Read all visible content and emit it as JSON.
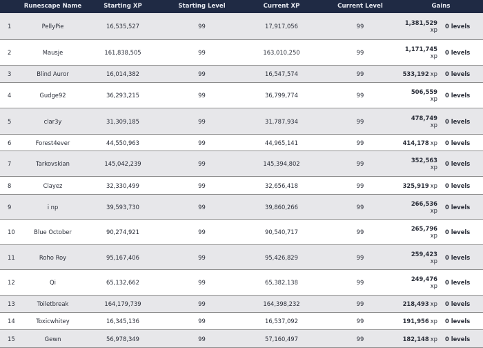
{
  "table": {
    "headers": {
      "name": "Runescape Name",
      "starting_xp": "Starting XP",
      "starting_level": "Starting Level",
      "current_xp": "Current XP",
      "current_level": "Current Level",
      "gains": "Gains"
    },
    "rows": [
      {
        "rank": "1",
        "name": "PellyPie",
        "starting_xp": "16,535,527",
        "starting_level": "99",
        "current_xp": "17,917,056",
        "current_level": "99",
        "gains_xp": "1,381,529",
        "xp_unit": "xp",
        "gains_levels": "0 levels"
      },
      {
        "rank": "2",
        "name": "Mausje",
        "starting_xp": "161,838,505",
        "starting_level": "99",
        "current_xp": "163,010,250",
        "current_level": "99",
        "gains_xp": "1,171,745",
        "xp_unit": "xp",
        "gains_levels": "0 levels"
      },
      {
        "rank": "3",
        "name": "Blind Auror",
        "starting_xp": "16,014,382",
        "starting_level": "99",
        "current_xp": "16,547,574",
        "current_level": "99",
        "gains_xp": "533,192",
        "xp_unit": "xp",
        "gains_levels": "0 levels"
      },
      {
        "rank": "4",
        "name": "Gudge92",
        "starting_xp": "36,293,215",
        "starting_level": "99",
        "current_xp": "36,799,774",
        "current_level": "99",
        "gains_xp": "506,559",
        "xp_unit": "xp",
        "gains_levels": "0 levels"
      },
      {
        "rank": "5",
        "name": "clar3y",
        "starting_xp": "31,309,185",
        "starting_level": "99",
        "current_xp": "31,787,934",
        "current_level": "99",
        "gains_xp": "478,749",
        "xp_unit": "xp",
        "gains_levels": "0 levels"
      },
      {
        "rank": "6",
        "name": "Forest4ever",
        "starting_xp": "44,550,963",
        "starting_level": "99",
        "current_xp": "44,965,141",
        "current_level": "99",
        "gains_xp": "414,178",
        "xp_unit": "xp",
        "gains_levels": "0 levels"
      },
      {
        "rank": "7",
        "name": "Tarkovskian",
        "starting_xp": "145,042,239",
        "starting_level": "99",
        "current_xp": "145,394,802",
        "current_level": "99",
        "gains_xp": "352,563",
        "xp_unit": "xp",
        "gains_levels": "0 levels"
      },
      {
        "rank": "8",
        "name": "Clayez",
        "starting_xp": "32,330,499",
        "starting_level": "99",
        "current_xp": "32,656,418",
        "current_level": "99",
        "gains_xp": "325,919",
        "xp_unit": "xp",
        "gains_levels": "0 levels"
      },
      {
        "rank": "9",
        "name": "i np",
        "starting_xp": "39,593,730",
        "starting_level": "99",
        "current_xp": "39,860,266",
        "current_level": "99",
        "gains_xp": "266,536",
        "xp_unit": "xp",
        "gains_levels": "0 levels"
      },
      {
        "rank": "10",
        "name": "Blue October",
        "starting_xp": "90,274,921",
        "starting_level": "99",
        "current_xp": "90,540,717",
        "current_level": "99",
        "gains_xp": "265,796",
        "xp_unit": "xp",
        "gains_levels": "0 levels"
      },
      {
        "rank": "11",
        "name": "Roho Roy",
        "starting_xp": "95,167,406",
        "starting_level": "99",
        "current_xp": "95,426,829",
        "current_level": "99",
        "gains_xp": "259,423",
        "xp_unit": "xp",
        "gains_levels": "0 levels"
      },
      {
        "rank": "12",
        "name": "Qi",
        "starting_xp": "65,132,662",
        "starting_level": "99",
        "current_xp": "65,382,138",
        "current_level": "99",
        "gains_xp": "249,476",
        "xp_unit": "xp",
        "gains_levels": "0 levels"
      },
      {
        "rank": "13",
        "name": "Toiletbreak",
        "starting_xp": "164,179,739",
        "starting_level": "99",
        "current_xp": "164,398,232",
        "current_level": "99",
        "gains_xp": "218,493",
        "xp_unit": "xp",
        "gains_levels": "0 levels"
      },
      {
        "rank": "14",
        "name": "Toxicwhitey",
        "starting_xp": "16,345,136",
        "starting_level": "99",
        "current_xp": "16,537,092",
        "current_level": "99",
        "gains_xp": "191,956",
        "xp_unit": "xp",
        "gains_levels": "0 levels"
      },
      {
        "rank": "15",
        "name": "Gewn",
        "starting_xp": "56,978,349",
        "starting_level": "99",
        "current_xp": "57,160,497",
        "current_level": "99",
        "gains_xp": "182,148",
        "xp_unit": "xp",
        "gains_levels": "0 levels"
      }
    ]
  }
}
